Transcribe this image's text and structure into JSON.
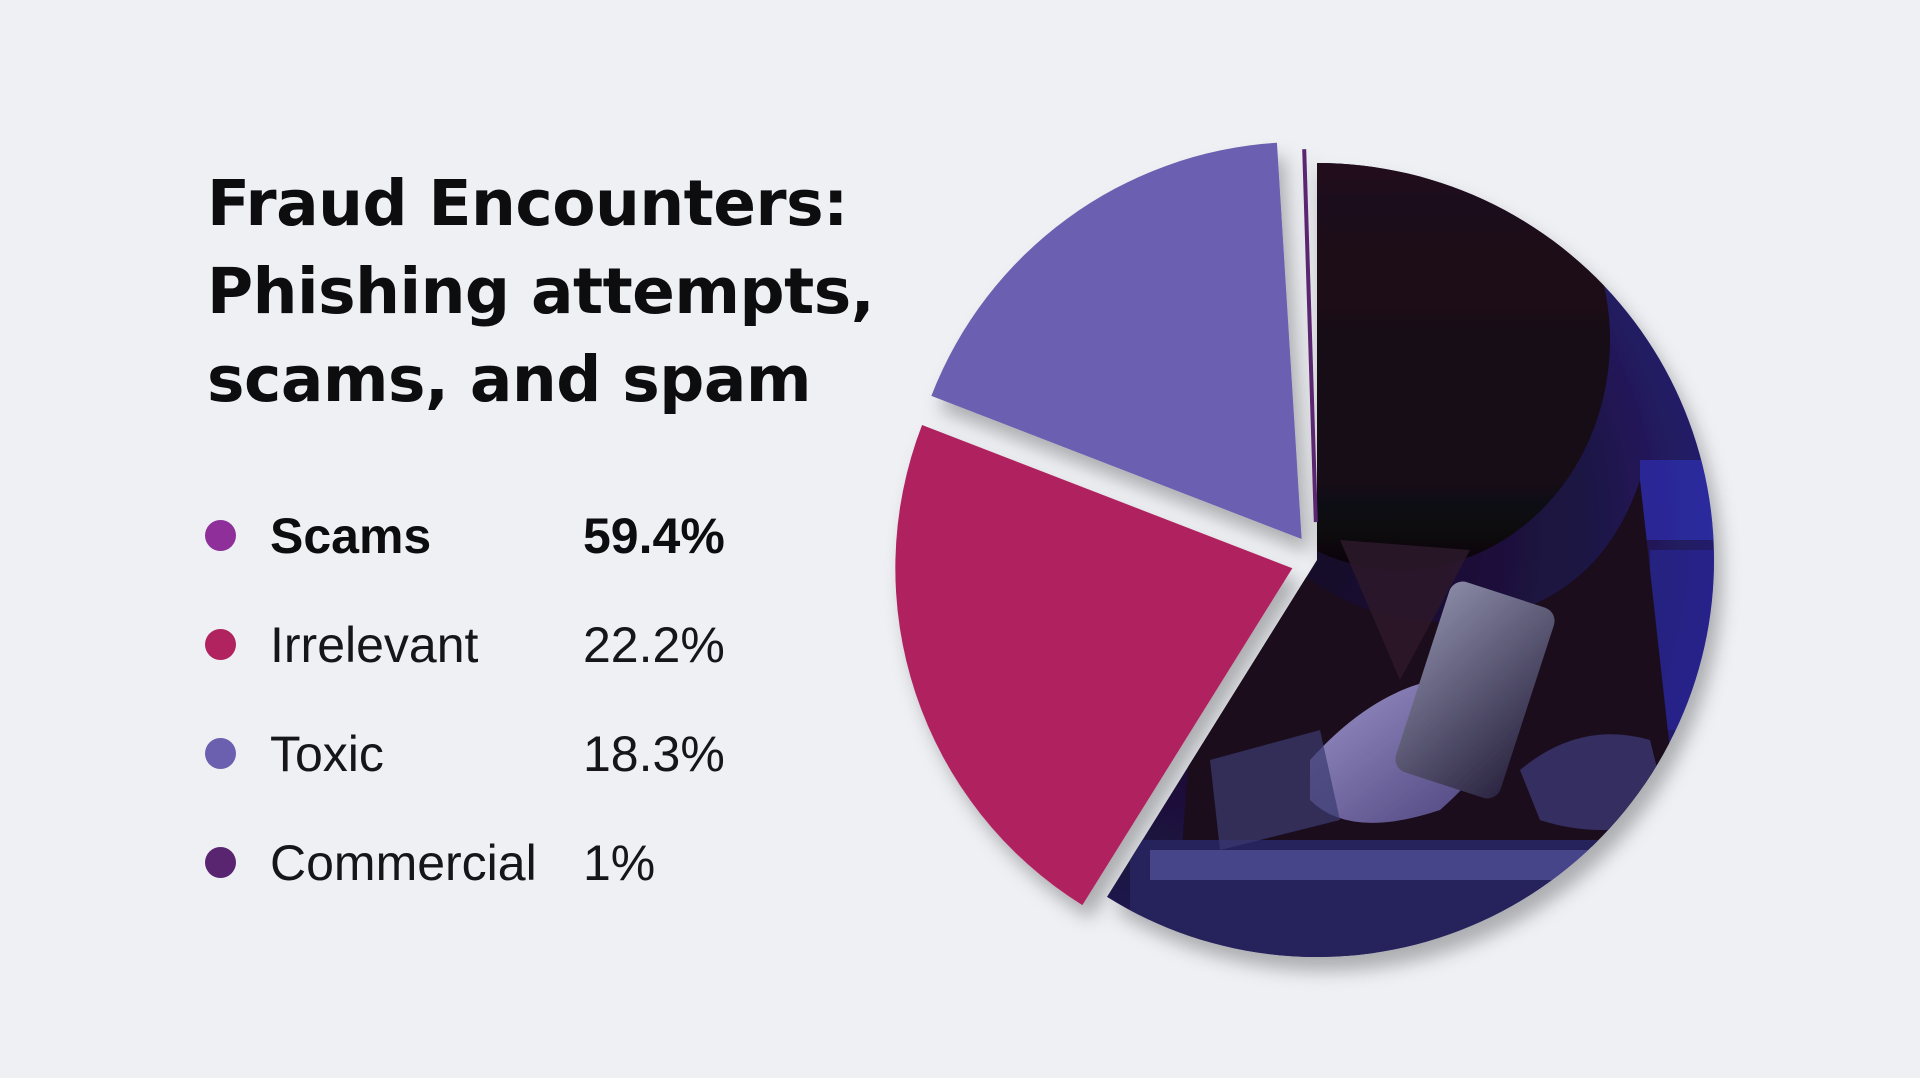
{
  "title": {
    "line1": "Fraud Encounters:",
    "line2": "Phishing attempts,",
    "line3": "scams, and spam"
  },
  "legend": [
    {
      "label": "Scams",
      "value": "59.4%",
      "color": "#8e2f9a",
      "bold": true
    },
    {
      "label": "Irrelevant",
      "value": "22.2%",
      "color": "#b0235e",
      "bold": false
    },
    {
      "label": "Toxic",
      "value": "18.3%",
      "color": "#6b5fb0",
      "bold": false
    },
    {
      "label": "Commercial",
      "value": "1%",
      "color": "#5a2570",
      "bold": false
    }
  ],
  "chart_data": {
    "type": "pie",
    "title": "Fraud Encounters: Phishing attempts, scams, and spam",
    "slices": [
      {
        "label": "Scams",
        "value": 59.4,
        "color": "#8e2f9a",
        "fill": "photo"
      },
      {
        "label": "Irrelevant",
        "value": 22.2,
        "color": "#b0235e",
        "fill": "solid"
      },
      {
        "label": "Toxic",
        "value": 18.3,
        "color": "#6b5fb0",
        "fill": "solid"
      },
      {
        "label": "Commercial",
        "value": 1,
        "color": "#5a2570",
        "fill": "line"
      }
    ],
    "start_angle_deg": 0,
    "direction": "clockwise",
    "photo_description": "hooded person holding a smartphone over a laptop in dark blue and magenta light",
    "legend_position": "left"
  }
}
